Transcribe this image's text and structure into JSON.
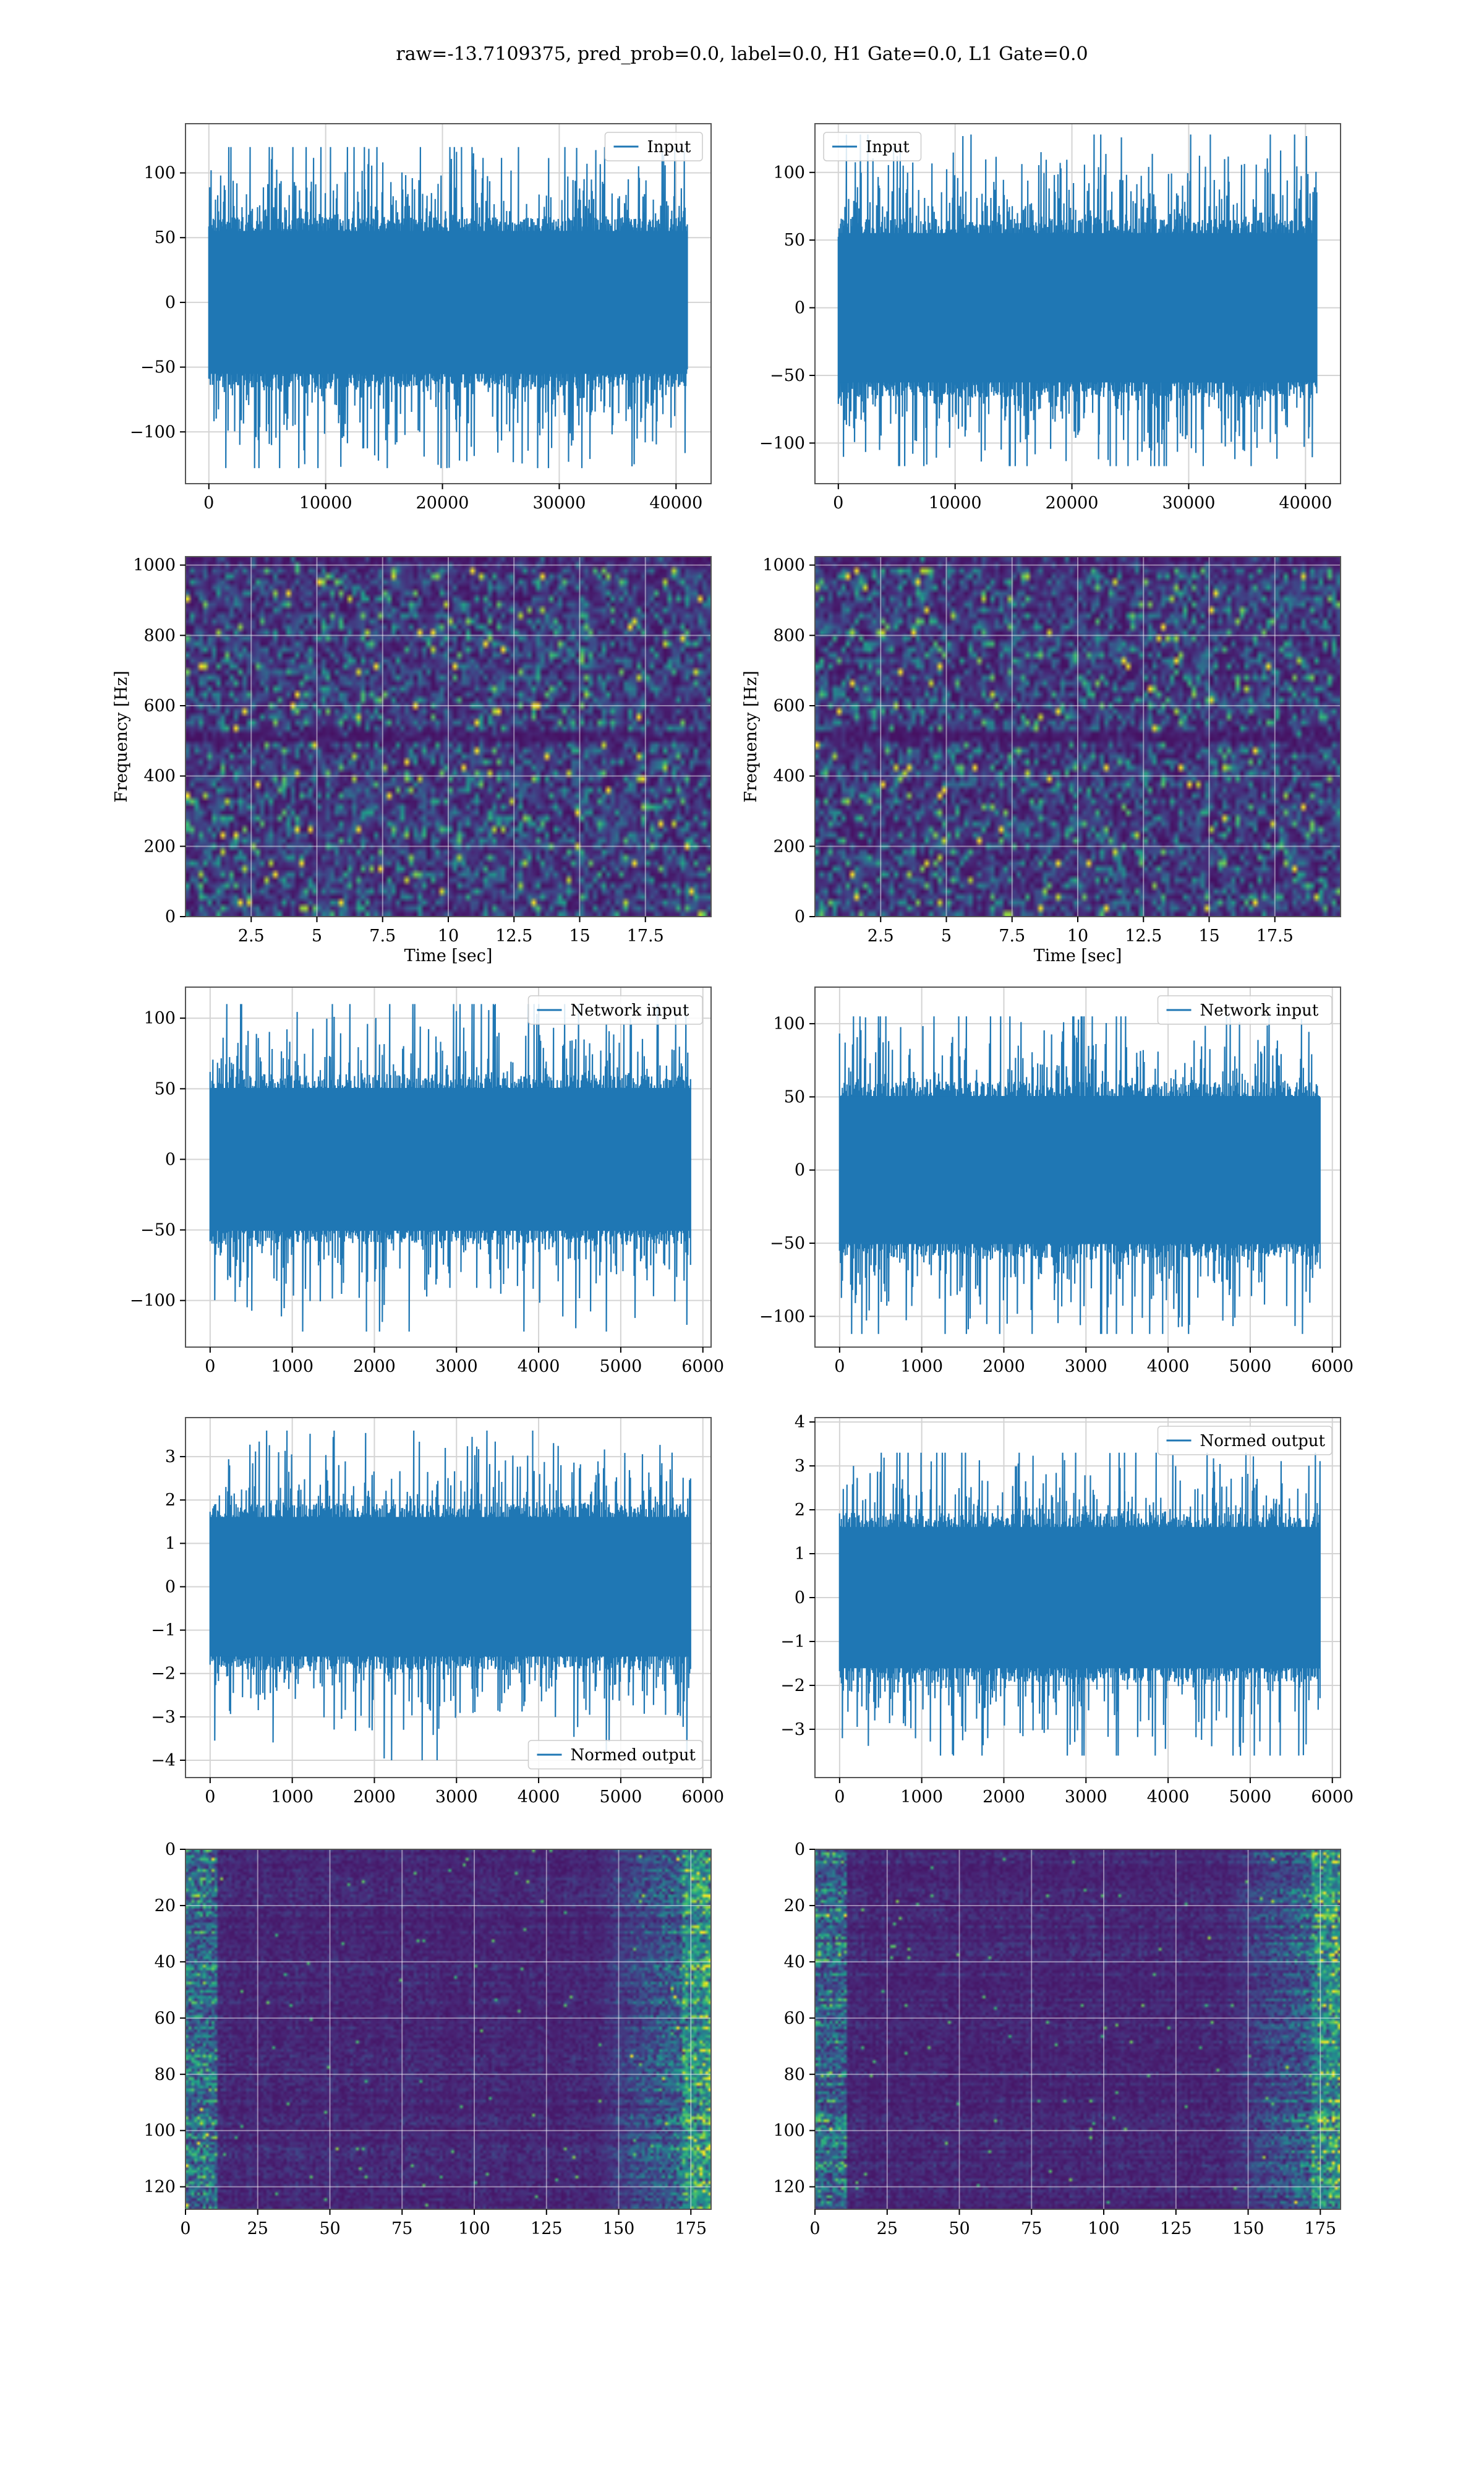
{
  "figure": {
    "title": "raw=-13.7109375, pred_prob=0.0, label=0.0, H1 Gate=0.0, L1 Gate=0.0"
  },
  "colors": {
    "line": "#1f77b4",
    "grid": "#d4d4d4",
    "spine": "#555555",
    "viridis": [
      "#440154",
      "#482878",
      "#3e4989",
      "#31688e",
      "#26828e",
      "#1f9e89",
      "#35b779",
      "#6ece58",
      "#b5de2b",
      "#fde725"
    ]
  },
  "chart_data": [
    {
      "id": "input-left",
      "type": "line",
      "row": 0,
      "col": 0,
      "legend": {
        "labels": [
          "Input"
        ],
        "loc": "upper right"
      },
      "xlim": [
        -2000,
        43000
      ],
      "ylim": [
        -140,
        138
      ],
      "xticks": [
        0,
        10000,
        20000,
        30000,
        40000
      ],
      "yticks": [
        -100,
        -50,
        0,
        50,
        100
      ],
      "grid": true,
      "series": [
        {
          "name": "Input",
          "x_range": [
            0,
            40960
          ],
          "core_amplitude": 60,
          "envelope": [
            -128,
            120
          ],
          "samples": 650,
          "seed": 11
        }
      ]
    },
    {
      "id": "input-right",
      "type": "line",
      "row": 0,
      "col": 1,
      "legend": {
        "labels": [
          "Input"
        ],
        "loc": "upper left"
      },
      "xlim": [
        -2000,
        43000
      ],
      "ylim": [
        -130,
        136
      ],
      "xticks": [
        0,
        10000,
        20000,
        30000,
        40000
      ],
      "yticks": [
        -100,
        -50,
        0,
        50,
        100
      ],
      "grid": true,
      "series": [
        {
          "name": "Input",
          "x_range": [
            0,
            40960
          ],
          "core_amplitude": 60,
          "envelope": [
            -117,
            128
          ],
          "samples": 650,
          "seed": 23
        }
      ]
    },
    {
      "id": "spectrogram-left",
      "type": "heatmap",
      "row": 1,
      "col": 0,
      "xlabel": "Time [sec]",
      "ylabel": "Frequency [Hz]",
      "xlim": [
        0,
        20
      ],
      "ylim": [
        0,
        1024
      ],
      "xticks": [
        2.5,
        5.0,
        7.5,
        10.0,
        12.5,
        15.0,
        17.5
      ],
      "yticks": [
        0,
        200,
        400,
        600,
        800,
        1000
      ],
      "grid": true,
      "colormap": "viridis",
      "cols": 120,
      "rows": 64,
      "seed": 37,
      "dark_band_hz": 512
    },
    {
      "id": "spectrogram-right",
      "type": "heatmap",
      "row": 1,
      "col": 1,
      "xlabel": "Time [sec]",
      "ylabel": "Frequency [Hz]",
      "xlim": [
        0,
        20
      ],
      "ylim": [
        0,
        1024
      ],
      "xticks": [
        2.5,
        5.0,
        7.5,
        10.0,
        12.5,
        15.0,
        17.5
      ],
      "yticks": [
        0,
        200,
        400,
        600,
        800,
        1000
      ],
      "grid": true,
      "colormap": "viridis",
      "cols": 120,
      "rows": 64,
      "seed": 41,
      "dark_band_hz": 512
    },
    {
      "id": "network-input-left",
      "type": "line",
      "row": 2,
      "col": 0,
      "legend": {
        "labels": [
          "Network input"
        ],
        "loc": "upper right"
      },
      "xlim": [
        -300,
        6100
      ],
      "ylim": [
        -133,
        122
      ],
      "xticks": [
        0,
        1000,
        2000,
        3000,
        4000,
        5000,
        6000
      ],
      "yticks": [
        -100,
        -50,
        0,
        50,
        100
      ],
      "grid": true,
      "series": [
        {
          "name": "Network input",
          "x_range": [
            0,
            5850
          ],
          "core_amplitude": 55,
          "envelope": [
            -122,
            110
          ],
          "samples": 520,
          "seed": 53
        }
      ]
    },
    {
      "id": "network-input-right",
      "type": "line",
      "row": 2,
      "col": 1,
      "legend": {
        "labels": [
          "Network input"
        ],
        "loc": "upper right"
      },
      "xlim": [
        -300,
        6100
      ],
      "ylim": [
        -121,
        125
      ],
      "xticks": [
        0,
        1000,
        2000,
        3000,
        4000,
        5000,
        6000
      ],
      "yticks": [
        -100,
        -50,
        0,
        50,
        100
      ],
      "grid": true,
      "series": [
        {
          "name": "Network input",
          "x_range": [
            0,
            5850
          ],
          "core_amplitude": 55,
          "envelope": [
            -112,
            105
          ],
          "samples": 520,
          "seed": 59
        }
      ]
    },
    {
      "id": "normed-output-left",
      "type": "line",
      "row": 3,
      "col": 0,
      "legend": {
        "labels": [
          "Normed output"
        ],
        "loc": "lower right"
      },
      "xlim": [
        -300,
        6100
      ],
      "ylim": [
        -4.4,
        3.9
      ],
      "xticks": [
        0,
        1000,
        2000,
        3000,
        4000,
        5000,
        6000
      ],
      "yticks": [
        -4,
        -3,
        -2,
        -1,
        0,
        1,
        2,
        3
      ],
      "grid": true,
      "series": [
        {
          "name": "Normed output",
          "x_range": [
            0,
            5850
          ],
          "core_amplitude": 1.75,
          "envelope": [
            -4.0,
            3.6
          ],
          "samples": 520,
          "seed": 61
        }
      ]
    },
    {
      "id": "normed-output-right",
      "type": "line",
      "row": 3,
      "col": 1,
      "legend": {
        "labels": [
          "Normed output"
        ],
        "loc": "upper right"
      },
      "xlim": [
        -300,
        6100
      ],
      "ylim": [
        -4.1,
        4.1
      ],
      "xticks": [
        0,
        1000,
        2000,
        3000,
        4000,
        5000,
        6000
      ],
      "yticks": [
        -3,
        -2,
        -1,
        0,
        1,
        2,
        3,
        4
      ],
      "grid": true,
      "series": [
        {
          "name": "Normed output",
          "x_range": [
            0,
            5850
          ],
          "core_amplitude": 1.75,
          "envelope": [
            -3.6,
            3.3
          ],
          "samples": 520,
          "seed": 67
        }
      ]
    },
    {
      "id": "features-left",
      "type": "heatmap",
      "row": 4,
      "col": 0,
      "xlim": [
        0,
        182
      ],
      "ylim": [
        128,
        0
      ],
      "xticks": [
        0,
        25,
        50,
        75,
        100,
        125,
        150,
        175
      ],
      "yticks": [
        0,
        20,
        40,
        60,
        80,
        100,
        120
      ],
      "grid": true,
      "colormap": "viridis",
      "cols": 182,
      "rows": 128,
      "seed": 71,
      "pattern": "features"
    },
    {
      "id": "features-right",
      "type": "heatmap",
      "row": 4,
      "col": 1,
      "xlim": [
        0,
        182
      ],
      "ylim": [
        128,
        0
      ],
      "xticks": [
        0,
        25,
        50,
        75,
        100,
        125,
        150,
        175
      ],
      "yticks": [
        0,
        20,
        40,
        60,
        80,
        100,
        120
      ],
      "grid": true,
      "colormap": "viridis",
      "cols": 182,
      "rows": 128,
      "seed": 79,
      "pattern": "features"
    }
  ]
}
